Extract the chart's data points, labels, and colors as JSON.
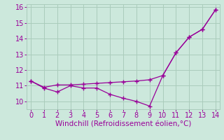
{
  "line1_x": [
    0,
    1,
    2,
    3,
    4,
    5,
    6,
    7,
    8,
    9,
    10,
    11,
    12,
    13,
    14
  ],
  "line1_y": [
    11.3,
    10.85,
    10.6,
    11.0,
    10.85,
    10.85,
    10.45,
    10.2,
    10.0,
    9.7,
    11.65,
    13.1,
    14.1,
    14.6,
    15.85
  ],
  "line2_x": [
    0,
    1,
    2,
    3,
    4,
    5,
    6,
    7,
    8,
    9,
    10,
    11,
    12,
    13,
    14
  ],
  "line2_y": [
    11.3,
    10.9,
    11.05,
    11.05,
    11.1,
    11.15,
    11.2,
    11.25,
    11.3,
    11.38,
    11.65,
    13.1,
    14.1,
    14.6,
    15.85
  ],
  "color": "#990099",
  "xlabel": "Windchill (Refroidissement éolien,°C)",
  "xlim": [
    -0.3,
    14.3
  ],
  "ylim": [
    9.5,
    16.2
  ],
  "xticks": [
    0,
    1,
    2,
    3,
    4,
    5,
    6,
    7,
    8,
    9,
    10,
    11,
    12,
    13,
    14
  ],
  "yticks": [
    10,
    11,
    12,
    13,
    14,
    15,
    16
  ],
  "background_color": "#cce8dc",
  "grid_color": "#aaccbb",
  "xlabel_fontsize": 7.5,
  "tick_fontsize": 7
}
